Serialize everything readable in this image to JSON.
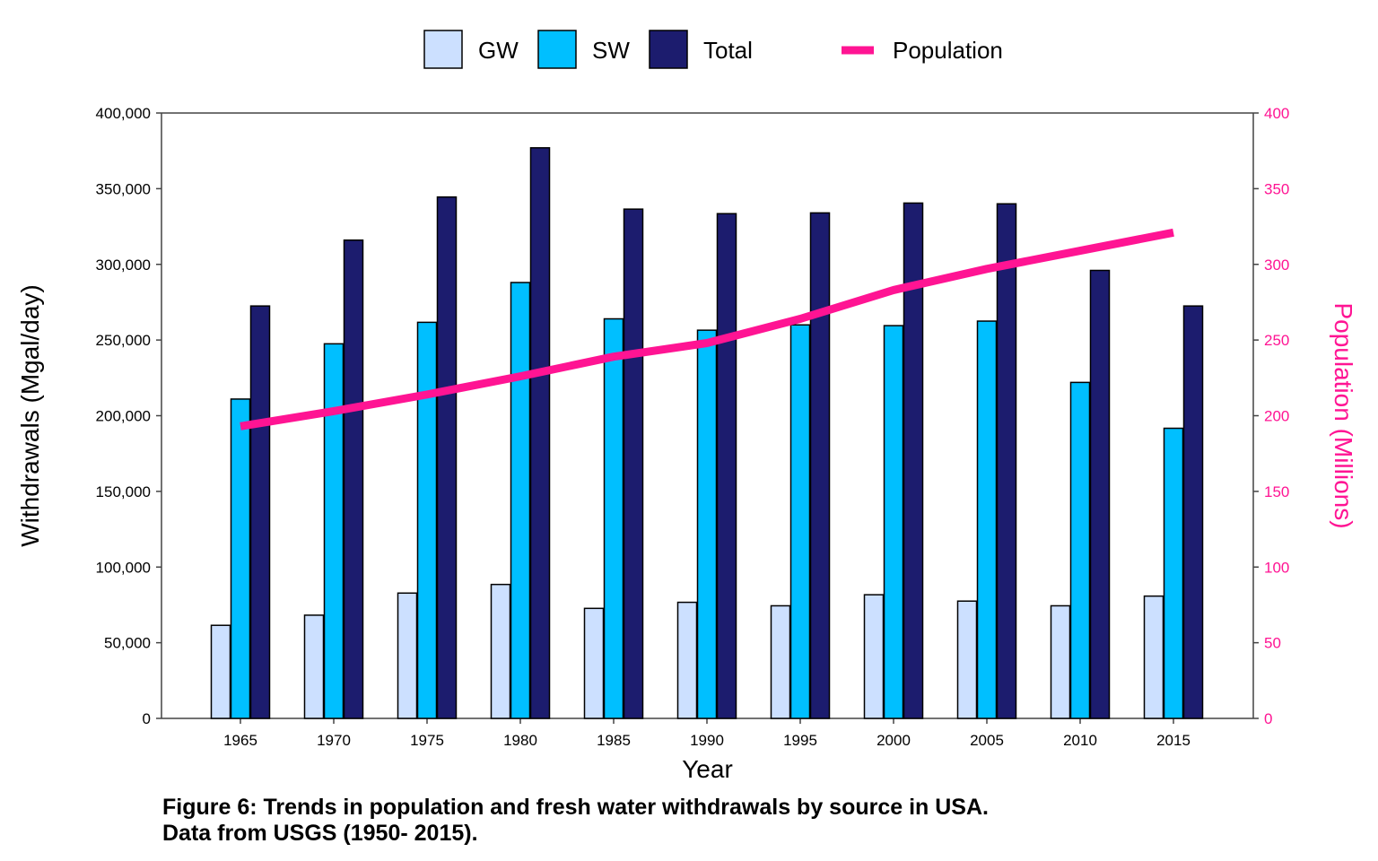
{
  "chart_data": {
    "type": "bar",
    "categories": [
      "1965",
      "1970",
      "1975",
      "1980",
      "1985",
      "1990",
      "1995",
      "2000",
      "2005",
      "2010",
      "2015"
    ],
    "series": [
      {
        "name": "GW",
        "color": "#cce0ff",
        "values": [
          61500,
          68200,
          82800,
          88500,
          72700,
          76700,
          74400,
          81700,
          77500,
          74400,
          80800
        ]
      },
      {
        "name": "SW",
        "color": "#00bfff",
        "values": [
          211000,
          247500,
          261700,
          288000,
          264000,
          256500,
          260000,
          259500,
          262500,
          222000,
          191700
        ]
      },
      {
        "name": "Total",
        "color": "#1c1c6e",
        "values": [
          272500,
          316000,
          344500,
          377000,
          336500,
          333500,
          334000,
          340500,
          340000,
          296000,
          272500
        ]
      }
    ],
    "line_series": {
      "name": "Population",
      "color": "#ff1493",
      "axis": "right",
      "values": [
        193,
        203,
        214,
        226,
        239,
        248,
        264,
        283,
        297,
        309,
        321
      ]
    },
    "xlabel": "Year",
    "ylabel": "Withdrawals (Mgal/day)",
    "y2label": "Population (Millions)",
    "ylim": [
      0,
      400000
    ],
    "y2lim": [
      0,
      400
    ],
    "yticks": [
      "0",
      "50,000",
      "100,000",
      "150,000",
      "200,000",
      "250,000",
      "300,000",
      "350,000",
      "400,000"
    ],
    "y2ticks": [
      "0",
      "50",
      "100",
      "150",
      "200",
      "250",
      "300",
      "350",
      "400"
    ],
    "legend_position": "top",
    "grid": false
  },
  "caption": {
    "line1": "Figure 6: Trends in population and fresh water withdrawals by source in USA.",
    "line2": "Data from USGS (1950- 2015)."
  }
}
